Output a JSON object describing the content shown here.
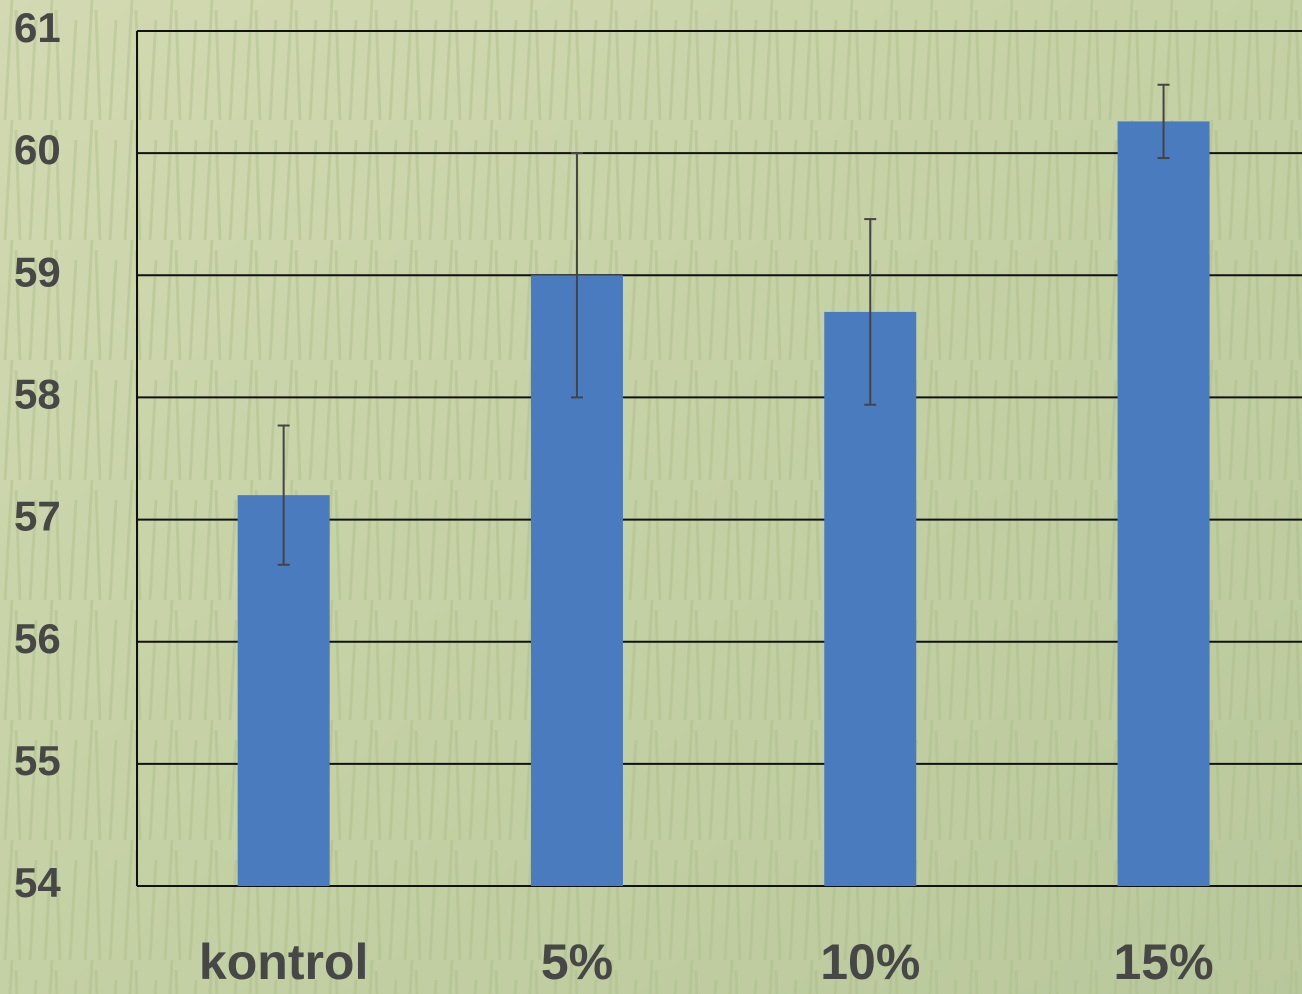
{
  "chart_data": {
    "type": "bar",
    "categories": [
      "kontrol",
      "5%",
      "10%",
      "15%"
    ],
    "values": [
      57.2,
      59.0,
      58.7,
      60.26
    ],
    "errors": [
      0.57,
      1.0,
      0.76,
      0.3
    ],
    "color": "#4a7bbf",
    "ylim": [
      54,
      61
    ],
    "yticks": [
      54,
      55,
      56,
      57,
      58,
      59,
      60,
      61
    ],
    "grid": true
  }
}
